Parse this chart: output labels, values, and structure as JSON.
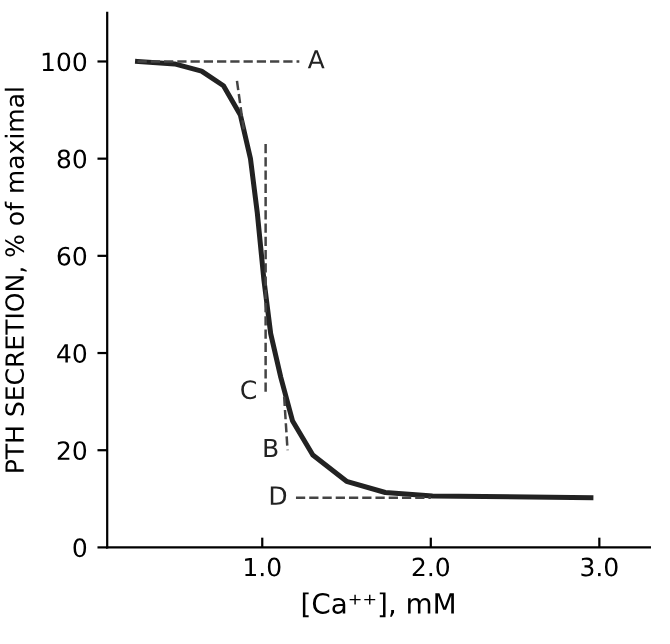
{
  "chart_data": {
    "type": "line",
    "xlabel": "[Ca⁺⁺], mM",
    "ylabel": "PTH SECRETION, % of maximal",
    "xlim": [
      0.08,
      3.3
    ],
    "ylim": [
      0,
      110
    ],
    "xticks": [
      {
        "value": 1,
        "label": "1.0"
      },
      {
        "value": 2,
        "label": "2.0"
      },
      {
        "value": 3,
        "label": "3.0"
      }
    ],
    "yticks": [
      0,
      20,
      40,
      60,
      80,
      100
    ],
    "grid": false,
    "legend": false,
    "marker": "none",
    "series": [
      {
        "color": "#222222",
        "line_style": "solid",
        "x": [
          0.26,
          0.48,
          0.64,
          0.77,
          0.87,
          0.93,
          0.97,
          1.01,
          1.05,
          1.11,
          1.18,
          1.3,
          1.5,
          1.73,
          2.01,
          2.95
        ],
        "values": [
          100,
          99.5,
          98,
          95,
          89,
          80,
          69,
          55,
          44,
          35,
          26,
          19,
          13.6,
          11.3,
          10.6,
          10.2
        ]
      },
      {
        "color": "#444444",
        "line_style": "dashed",
        "x": [
          0.26,
          1.22
        ],
        "values": [
          100,
          100
        ]
      },
      {
        "color": "#444444",
        "line_style": "dashed",
        "x": [
          0.85,
          0.89
        ],
        "values": [
          96,
          86
        ]
      },
      {
        "color": "#444444",
        "line_style": "dashed",
        "x": [
          1.02,
          1.02
        ],
        "values": [
          83,
          32
        ]
      },
      {
        "color": "#444444",
        "line_style": "dashed",
        "x": [
          1.13,
          1.15
        ],
        "values": [
          31,
          20
        ]
      },
      {
        "color": "#444444",
        "line_style": "dashed",
        "x": [
          1.2,
          2.0
        ],
        "values": [
          10.2,
          10.2
        ]
      }
    ],
    "annotations": [
      {
        "text": "A",
        "x": 1.22,
        "y": 100
      },
      {
        "text": "C",
        "x": 1.02,
        "y": 32
      },
      {
        "text": "B",
        "x": 1.15,
        "y": 20
      },
      {
        "text": "D",
        "x": 1.2,
        "y": 10.2
      }
    ]
  }
}
